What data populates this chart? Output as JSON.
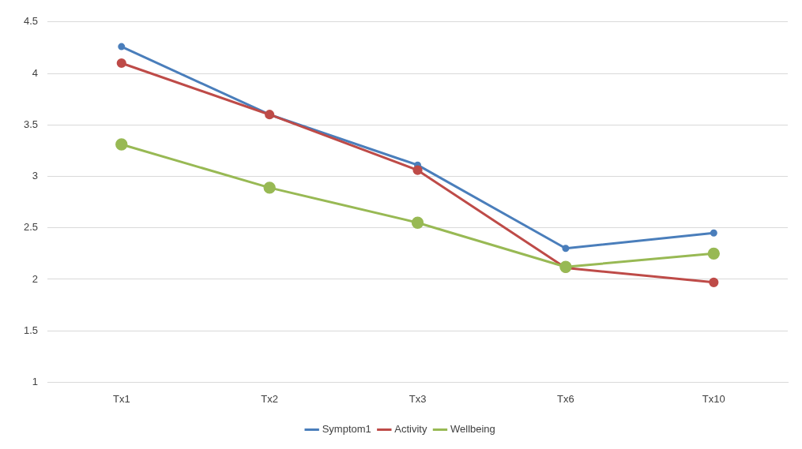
{
  "chart_data": {
    "type": "line",
    "categories": [
      "Tx1",
      "Tx2",
      "Tx3",
      "Tx6",
      "Tx10"
    ],
    "series": [
      {
        "name": "Symptom1",
        "color": "#4a7ebb",
        "values": [
          4.26,
          3.6,
          3.11,
          2.3,
          2.45
        ]
      },
      {
        "name": "Activity",
        "color": "#be4b48",
        "values": [
          4.1,
          3.6,
          3.06,
          2.11,
          1.97
        ]
      },
      {
        "name": "Wellbeing",
        "color": "#98b954",
        "values": [
          3.31,
          2.89,
          2.55,
          2.12,
          2.25
        ]
      }
    ],
    "ylim": [
      1,
      4.5
    ],
    "yticks": [
      1,
      1.5,
      2,
      2.5,
      3,
      3.5,
      4,
      4.5
    ],
    "grid": "y",
    "legend": "bottom",
    "marker": "circle",
    "line_style": "solid"
  }
}
